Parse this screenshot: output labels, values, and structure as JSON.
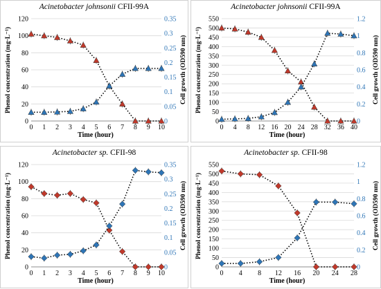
{
  "chart_data": [
    {
      "type": "line",
      "title_species": "Acinetobacter johnsonii",
      "title_strain": " CFII-99A",
      "xlabel": "Time (hour)",
      "ylabel_left": "Phenol concentration (mg·L⁻¹)",
      "ylabel_right": "Cell growth (OD590 nm)",
      "x": [
        0,
        1,
        2,
        3,
        4,
        5,
        6,
        7,
        8,
        9,
        10
      ],
      "xlim": [
        0,
        10
      ],
      "ylim_left": [
        0,
        120
      ],
      "ylim_right": [
        0,
        0.35
      ],
      "left_ticks": [
        0,
        20,
        40,
        60,
        80,
        100,
        120
      ],
      "right_ticks": [
        "0",
        "0.05",
        "0.1",
        "0.15",
        "0.2",
        "0.25",
        "0.3",
        "0.35"
      ],
      "series": [
        {
          "axis": "left",
          "marker": "triangle",
          "color": "#c0392b",
          "values": [
            102,
            100,
            98,
            94,
            89,
            71,
            41,
            20,
            0,
            0,
            0
          ]
        },
        {
          "axis": "right",
          "marker": "triangle",
          "color": "#2e75b6",
          "values": [
            0.03,
            0.03,
            0.031,
            0.033,
            0.042,
            0.065,
            0.12,
            0.16,
            0.18,
            0.18,
            0.18
          ]
        }
      ]
    },
    {
      "type": "line",
      "title_species": "Acinetobacter johnsonii",
      "title_strain": " CFII-99A",
      "xlabel": "Time (hour)",
      "ylabel_left": "Phenol concentration (mg·L⁻¹)",
      "ylabel_right": "Cell growth (OD590 nm)",
      "x": [
        0,
        4,
        8,
        12,
        16,
        20,
        24,
        28,
        32,
        36,
        40
      ],
      "xlim": [
        0,
        40
      ],
      "ylim_left": [
        0,
        550
      ],
      "ylim_right": [
        0,
        1.2
      ],
      "left_ticks": [
        0,
        50,
        100,
        150,
        200,
        250,
        300,
        350,
        400,
        450,
        500,
        550
      ],
      "right_ticks": [
        "0",
        "0.2",
        "0.4",
        "0.6",
        "0.8",
        "1",
        "1.2"
      ],
      "series": [
        {
          "axis": "left",
          "marker": "triangle",
          "color": "#c0392b",
          "values": [
            500,
            495,
            478,
            450,
            380,
            270,
            210,
            75,
            0,
            0,
            0
          ]
        },
        {
          "axis": "right",
          "marker": "triangle",
          "color": "#2e75b6",
          "values": [
            0.02,
            0.025,
            0.03,
            0.05,
            0.1,
            0.22,
            0.4,
            0.67,
            1.03,
            1.02,
            1.0
          ]
        }
      ]
    },
    {
      "type": "line",
      "title_species": "Acinetobacter sp.",
      "title_strain": " CFII-98",
      "xlabel": "Time (hour)",
      "ylabel_left": "Phenol concentration (mg·L⁻¹)",
      "ylabel_right": "Cell growth (OD590 nm)",
      "x": [
        0,
        1,
        2,
        3,
        4,
        5,
        6,
        7,
        8,
        9,
        10
      ],
      "xlim": [
        0,
        10
      ],
      "ylim_left": [
        0,
        120
      ],
      "ylim_right": [
        0,
        0.35
      ],
      "left_ticks": [
        0,
        20,
        40,
        60,
        80,
        100,
        120
      ],
      "right_ticks": [
        "0",
        "0.05",
        "0.1",
        "0.15",
        "0.2",
        "0.25",
        "0.3",
        "0.35"
      ],
      "series": [
        {
          "axis": "left",
          "marker": "diamond",
          "color": "#c0392b",
          "values": [
            94,
            86,
            84,
            86,
            79,
            75,
            43,
            18,
            0,
            0,
            0
          ]
        },
        {
          "axis": "right",
          "marker": "diamond",
          "color": "#2e75b6",
          "values": [
            0.035,
            0.03,
            0.04,
            0.043,
            0.055,
            0.075,
            0.14,
            0.215,
            0.33,
            0.325,
            0.322
          ]
        }
      ]
    },
    {
      "type": "line",
      "title_species": "Acinetobacter sp.",
      "title_strain": " CFII-98",
      "xlabel": "Time (hour)",
      "ylabel_left": "Phenol concentration (mg·L⁻¹)",
      "ylabel_right": "Cell growth (OD590 nm)",
      "x": [
        0,
        4,
        8,
        12,
        16,
        20,
        24,
        28
      ],
      "xlim": [
        0,
        28
      ],
      "ylim_left": [
        0,
        550
      ],
      "ylim_right": [
        0,
        1.2
      ],
      "left_ticks": [
        0,
        50,
        100,
        150,
        200,
        250,
        300,
        350,
        400,
        450,
        500,
        550
      ],
      "right_ticks": [
        "0",
        "0.2",
        "0.4",
        "0.6",
        "0.8",
        "1",
        "1.2"
      ],
      "series": [
        {
          "axis": "left",
          "marker": "diamond",
          "color": "#c0392b",
          "values": [
            515,
            500,
            495,
            435,
            290,
            0,
            0,
            0
          ]
        },
        {
          "axis": "right",
          "marker": "diamond",
          "color": "#2e75b6",
          "values": [
            0.04,
            0.04,
            0.06,
            0.11,
            0.34,
            0.76,
            0.76,
            0.74
          ]
        }
      ]
    }
  ]
}
